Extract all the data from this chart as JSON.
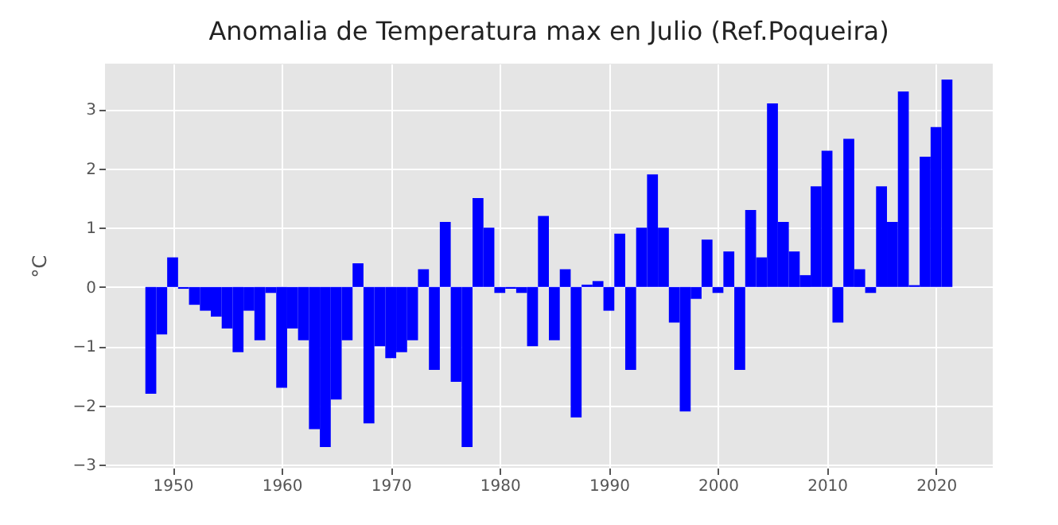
{
  "chart_data": {
    "type": "bar",
    "title": "Anomalia de Temperatura max en Julio (Ref.Poqueira)",
    "ylabel": "°C",
    "x": [
      1948,
      1949,
      1950,
      1951,
      1952,
      1953,
      1954,
      1955,
      1956,
      1957,
      1958,
      1959,
      1960,
      1961,
      1962,
      1963,
      1964,
      1965,
      1966,
      1967,
      1968,
      1969,
      1970,
      1971,
      1972,
      1973,
      1974,
      1975,
      1976,
      1977,
      1978,
      1979,
      1980,
      1981,
      1982,
      1983,
      1984,
      1985,
      1986,
      1987,
      1988,
      1989,
      1990,
      1991,
      1992,
      1993,
      1994,
      1995,
      1996,
      1997,
      1998,
      1999,
      2000,
      2001,
      2002,
      2003,
      2004,
      2005,
      2006,
      2007,
      2008,
      2009,
      2010,
      2011,
      2012,
      2013,
      2014,
      2015,
      2016,
      2017,
      2018,
      2019,
      2020,
      2021
    ],
    "values": [
      -1.8,
      -0.8,
      0.5,
      -0.03,
      -0.3,
      -0.4,
      -0.5,
      -0.7,
      -1.1,
      -0.4,
      -0.9,
      -0.1,
      -1.7,
      -0.7,
      -0.9,
      -2.4,
      -2.7,
      -1.9,
      -0.9,
      0.4,
      -2.3,
      -1.0,
      -1.2,
      -1.1,
      -0.9,
      0.3,
      -1.4,
      1.1,
      -1.6,
      -2.7,
      1.5,
      1.0,
      -0.1,
      -0.03,
      -0.1,
      -1.0,
      1.2,
      -0.9,
      0.3,
      -2.2,
      0.04,
      0.1,
      -0.4,
      0.9,
      -1.4,
      1.0,
      1.9,
      1.0,
      -0.6,
      -2.1,
      -0.2,
      0.8,
      -0.1,
      0.6,
      -1.4,
      1.3,
      0.5,
      3.1,
      1.1,
      0.6,
      0.2,
      1.7,
      2.3,
      -0.6,
      2.5,
      0.3,
      -0.1,
      1.7,
      1.1,
      3.3,
      0.03,
      2.2,
      2.7,
      3.5
    ],
    "color": "#0000ff",
    "xlim": [
      1943.8,
      2025.2
    ],
    "ylim": [
      -3.05,
      3.77
    ],
    "xticks": [
      1950,
      1960,
      1970,
      1980,
      1990,
      2000,
      2010,
      2020
    ],
    "yticks": [
      -3,
      -2,
      -1,
      0,
      1,
      2,
      3
    ],
    "grid": true
  }
}
